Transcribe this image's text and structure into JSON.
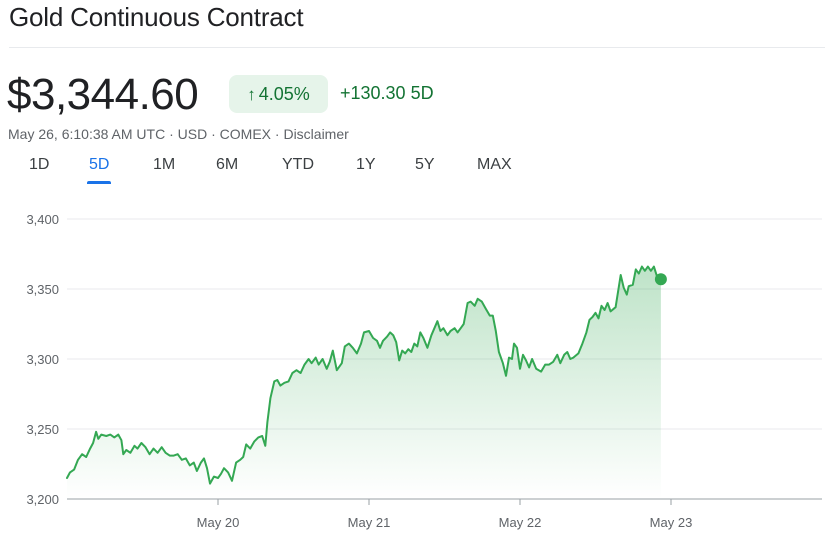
{
  "header": {
    "title": "Gold Continuous Contract",
    "price": "$3,344.60",
    "change_pct": "4.05%",
    "change_abs": "+130.30",
    "change_period": "5D",
    "meta": {
      "timestamp": "May 26, 6:10:38 AM UTC",
      "currency": "USD",
      "exchange": "COMEX",
      "disclaimer": "Disclaimer",
      "separator": "·"
    }
  },
  "tabs": [
    {
      "label": "1D",
      "active": false
    },
    {
      "label": "5D",
      "active": true
    },
    {
      "label": "1M",
      "active": false
    },
    {
      "label": "6M",
      "active": false
    },
    {
      "label": "YTD",
      "active": false
    },
    {
      "label": "1Y",
      "active": false
    },
    {
      "label": "5Y",
      "active": false
    },
    {
      "label": "MAX",
      "active": false
    }
  ],
  "colors": {
    "line": "#34a853",
    "positive_text": "#137333",
    "positive_bg": "#e6f4ea",
    "grid": "#e8eaed",
    "axis_text": "#5f6368",
    "active_tab": "#1a73e8"
  },
  "chart_data": {
    "type": "area",
    "xlabel": "",
    "ylabel": "",
    "ylim": [
      3200,
      3400
    ],
    "yticks": [
      3200,
      3250,
      3300,
      3350,
      3400
    ],
    "ytick_labels": [
      "3,200",
      "3,250",
      "3,300",
      "3,350",
      "3,400"
    ],
    "xlim": [
      0,
      4.72
    ],
    "xticks": [
      1,
      2,
      3,
      4
    ],
    "xtick_labels": [
      "May 20",
      "May 21",
      "May 22",
      "May 23"
    ],
    "x_unit": "trading days from chart start (May 20 at x=1)",
    "grid": true,
    "series": [
      {
        "values": [
          [
            0.0,
            3215
          ],
          [
            0.02,
            3219
          ],
          [
            0.047,
            3221
          ],
          [
            0.073,
            3228
          ],
          [
            0.1,
            3232
          ],
          [
            0.127,
            3230
          ],
          [
            0.153,
            3236
          ],
          [
            0.173,
            3240
          ],
          [
            0.193,
            3248
          ],
          [
            0.207,
            3243
          ],
          [
            0.227,
            3246
          ],
          [
            0.26,
            3245
          ],
          [
            0.287,
            3246
          ],
          [
            0.313,
            3244
          ],
          [
            0.34,
            3246
          ],
          [
            0.36,
            3242
          ],
          [
            0.373,
            3232
          ],
          [
            0.393,
            3235
          ],
          [
            0.42,
            3233
          ],
          [
            0.447,
            3238
          ],
          [
            0.467,
            3236
          ],
          [
            0.493,
            3240
          ],
          [
            0.52,
            3237
          ],
          [
            0.547,
            3232
          ],
          [
            0.573,
            3236
          ],
          [
            0.6,
            3233
          ],
          [
            0.627,
            3237
          ],
          [
            0.653,
            3233
          ],
          [
            0.68,
            3231
          ],
          [
            0.707,
            3231
          ],
          [
            0.733,
            3232
          ],
          [
            0.76,
            3228
          ],
          [
            0.787,
            3229
          ],
          [
            0.813,
            3224
          ],
          [
            0.84,
            3226
          ],
          [
            0.86,
            3220
          ],
          [
            0.887,
            3226
          ],
          [
            0.907,
            3229
          ],
          [
            0.927,
            3222
          ],
          [
            0.947,
            3211
          ],
          [
            0.973,
            3216
          ],
          [
            1.0,
            3215
          ],
          [
            1.02,
            3218
          ],
          [
            1.04,
            3222
          ],
          [
            1.067,
            3219
          ],
          [
            1.093,
            3213
          ],
          [
            1.12,
            3226
          ],
          [
            1.147,
            3228
          ],
          [
            1.167,
            3230
          ],
          [
            1.187,
            3239
          ],
          [
            1.213,
            3236
          ],
          [
            1.24,
            3241
          ],
          [
            1.267,
            3244
          ],
          [
            1.293,
            3245
          ],
          [
            1.313,
            3238
          ],
          [
            1.327,
            3255
          ],
          [
            1.347,
            3272
          ],
          [
            1.373,
            3284
          ],
          [
            1.393,
            3285
          ],
          [
            1.413,
            3281
          ],
          [
            1.44,
            3283
          ],
          [
            1.467,
            3284
          ],
          [
            1.493,
            3290
          ],
          [
            1.52,
            3292
          ],
          [
            1.547,
            3290
          ],
          [
            1.573,
            3296
          ],
          [
            1.6,
            3300
          ],
          [
            1.62,
            3297
          ],
          [
            1.647,
            3301
          ],
          [
            1.667,
            3296
          ],
          [
            1.693,
            3300
          ],
          [
            1.72,
            3293
          ],
          [
            1.74,
            3298
          ],
          [
            1.76,
            3306
          ],
          [
            1.787,
            3292
          ],
          [
            1.82,
            3297
          ],
          [
            1.84,
            3309
          ],
          [
            1.867,
            3311
          ],
          [
            1.893,
            3308
          ],
          [
            1.92,
            3304
          ],
          [
            1.947,
            3311
          ],
          [
            1.967,
            3319
          ],
          [
            2.0,
            3320
          ],
          [
            2.027,
            3315
          ],
          [
            2.053,
            3313
          ],
          [
            2.073,
            3308
          ],
          [
            2.093,
            3313
          ],
          [
            2.12,
            3316
          ],
          [
            2.14,
            3319
          ],
          [
            2.16,
            3317
          ],
          [
            2.18,
            3312
          ],
          [
            2.2,
            3299
          ],
          [
            2.22,
            3306
          ],
          [
            2.24,
            3304
          ],
          [
            2.26,
            3307
          ],
          [
            2.28,
            3305
          ],
          [
            2.3,
            3311
          ],
          [
            2.32,
            3309
          ],
          [
            2.34,
            3319
          ],
          [
            2.36,
            3315
          ],
          [
            2.387,
            3308
          ],
          [
            2.413,
            3317
          ],
          [
            2.433,
            3322
          ],
          [
            2.453,
            3327
          ],
          [
            2.473,
            3320
          ],
          [
            2.493,
            3322
          ],
          [
            2.52,
            3317
          ],
          [
            2.54,
            3320
          ],
          [
            2.567,
            3322
          ],
          [
            2.587,
            3319
          ],
          [
            2.607,
            3322
          ],
          [
            2.627,
            3325
          ],
          [
            2.653,
            3340
          ],
          [
            2.673,
            3341
          ],
          [
            2.7,
            3338
          ],
          [
            2.72,
            3343
          ],
          [
            2.747,
            3341
          ],
          [
            2.773,
            3336
          ],
          [
            2.8,
            3331
          ],
          [
            2.82,
            3331
          ],
          [
            2.84,
            3320
          ],
          [
            2.86,
            3305
          ],
          [
            2.887,
            3297
          ],
          [
            2.907,
            3288
          ],
          [
            2.927,
            3301
          ],
          [
            2.947,
            3300
          ],
          [
            2.96,
            3311
          ],
          [
            2.98,
            3308
          ],
          [
            3.0,
            3293
          ],
          [
            3.02,
            3303
          ],
          [
            3.04,
            3299
          ],
          [
            3.06,
            3294
          ],
          [
            3.08,
            3300
          ],
          [
            3.107,
            3293
          ],
          [
            3.14,
            3291
          ],
          [
            3.167,
            3296
          ],
          [
            3.193,
            3296
          ],
          [
            3.22,
            3298
          ],
          [
            3.247,
            3303
          ],
          [
            3.267,
            3297
          ],
          [
            3.293,
            3303
          ],
          [
            3.313,
            3305
          ],
          [
            3.333,
            3300
          ],
          [
            3.353,
            3301
          ],
          [
            3.387,
            3304
          ],
          [
            3.413,
            3311
          ],
          [
            3.44,
            3319
          ],
          [
            3.46,
            3328
          ],
          [
            3.48,
            3330
          ],
          [
            3.5,
            3333
          ],
          [
            3.52,
            3329
          ],
          [
            3.54,
            3338
          ],
          [
            3.56,
            3335
          ],
          [
            3.58,
            3340
          ],
          [
            3.6,
            3334
          ],
          [
            3.633,
            3337
          ],
          [
            3.667,
            3360
          ],
          [
            3.687,
            3351
          ],
          [
            3.707,
            3346
          ],
          [
            3.72,
            3352
          ],
          [
            3.747,
            3353
          ],
          [
            3.767,
            3364
          ],
          [
            3.787,
            3361
          ],
          [
            3.807,
            3366
          ],
          [
            3.827,
            3363
          ],
          [
            3.847,
            3366
          ],
          [
            3.867,
            3363
          ],
          [
            3.887,
            3366
          ],
          [
            3.907,
            3359
          ],
          [
            3.933,
            3357
          ]
        ]
      }
    ]
  }
}
